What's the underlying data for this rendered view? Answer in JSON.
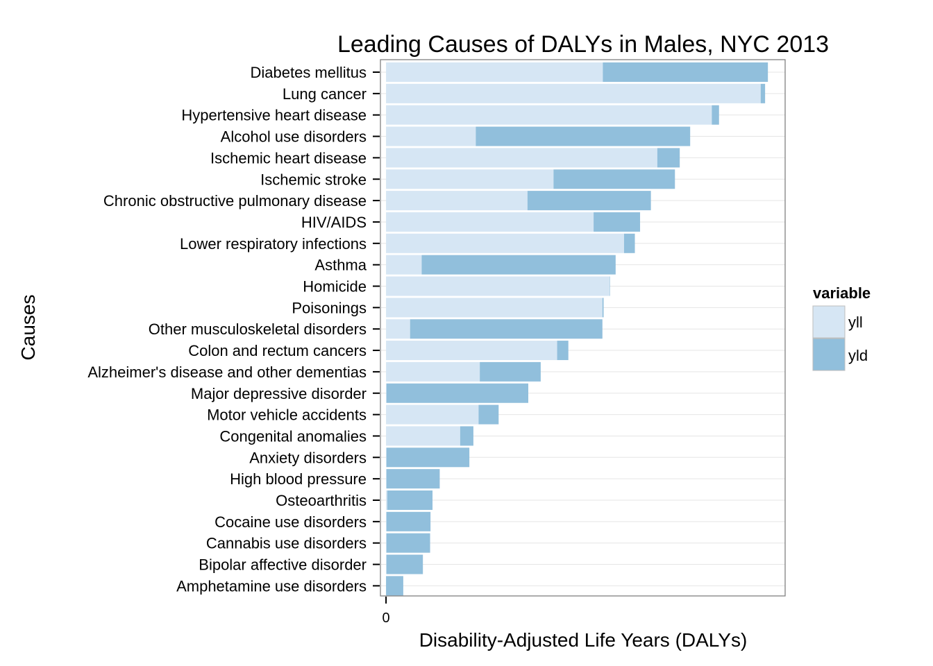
{
  "chart_data": {
    "type": "bar",
    "stacked": true,
    "orientation": "horizontal",
    "title": "Leading Causes of DALYs in Males, NYC 2013",
    "xlabel": "Disability-Adjusted Life Years (DALYs)",
    "ylabel": "Causes",
    "x_ticks": [
      "0"
    ],
    "xlim": [
      -1.4,
      99.6
    ],
    "grid": true,
    "legend": {
      "title": "variable",
      "position": "right"
    },
    "categories": [
      "Diabetes mellitus",
      "Lung cancer",
      "Hypertensive heart disease",
      "Alcohol use disorders",
      "Ischemic heart disease",
      "Ischemic stroke",
      "Chronic obstructive pulmonary disease",
      "HIV/AIDS",
      "Lower respiratory infections",
      "Asthma",
      "Homicide",
      "Poisonings",
      "Other musculoskeletal disorders",
      "Colon and rectum cancers",
      "Alzheimer's disease and other dementias",
      "Major depressive disorder",
      "Motor vehicle accidents",
      "Congenital anomalies",
      "Anxiety disorders",
      "High blood pressure",
      "Osteoarthritis",
      "Cocaine use disorders",
      "Cannabis use disorders",
      "Bipolar affective disorder",
      "Amphetamine use disorders"
    ],
    "series": [
      {
        "name": "yll",
        "color": "#d6e6f4",
        "values": [
          54.1,
          93.5,
          81.3,
          22.4,
          67.7,
          41.8,
          35.3,
          51.8,
          59.4,
          8.9,
          55.8,
          54.0,
          6.0,
          42.7,
          23.4,
          0.1,
          23.1,
          18.5,
          0.1,
          0.1,
          0.3,
          0.1,
          0.1,
          0.1,
          0.0
        ]
      },
      {
        "name": "yld",
        "color": "#91bfdc",
        "values": [
          41.2,
          1.1,
          1.8,
          53.5,
          5.6,
          30.3,
          30.8,
          11.6,
          2.7,
          48.4,
          0.1,
          0.3,
          48.0,
          2.8,
          15.2,
          35.4,
          5.0,
          3.3,
          20.7,
          13.3,
          11.3,
          11.0,
          10.9,
          9.1,
          4.3
        ]
      }
    ]
  }
}
